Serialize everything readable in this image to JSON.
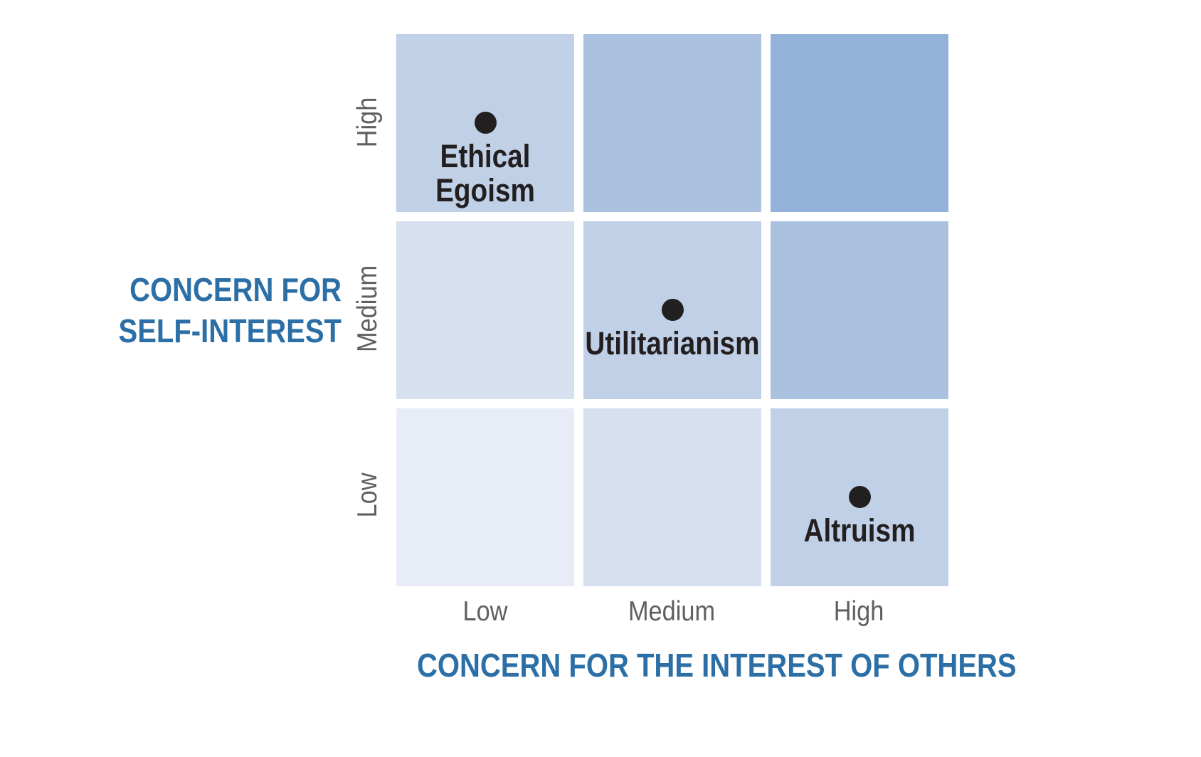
{
  "chart_data": {
    "type": "heatmap",
    "x_title": "CONCERN FOR THE INTEREST OF OTHERS",
    "y_title_lines": [
      "CONCERN FOR",
      "SELF-INTEREST"
    ],
    "x_categories": [
      "Low",
      "Medium",
      "High"
    ],
    "y_categories": [
      "Low",
      "Medium",
      "High"
    ],
    "cells": [
      {
        "x": "Low",
        "y": "High",
        "shade": 2,
        "color": "#c0d0e7"
      },
      {
        "x": "Medium",
        "y": "High",
        "shade": 3,
        "color": "#abc1e0"
      },
      {
        "x": "High",
        "y": "High",
        "shade": 4,
        "color": "#93b2da"
      },
      {
        "x": "Low",
        "y": "Medium",
        "shade": 1,
        "color": "#d6e0ee"
      },
      {
        "x": "Medium",
        "y": "Medium",
        "shade": 2,
        "color": "#c0d0e7"
      },
      {
        "x": "High",
        "y": "Medium",
        "shade": 3,
        "color": "#abc1e0"
      },
      {
        "x": "Low",
        "y": "Low",
        "shade": 0,
        "color": "#e8ecf6"
      },
      {
        "x": "Medium",
        "y": "Low",
        "shade": 1,
        "color": "#d6e0ee"
      },
      {
        "x": "High",
        "y": "Low",
        "shade": 2,
        "color": "#c0d0e7"
      }
    ],
    "points": [
      {
        "x": "Low",
        "y": "High",
        "label_lines": [
          "Ethical",
          "Egoism"
        ]
      },
      {
        "x": "Medium",
        "y": "Medium",
        "label_lines": [
          "Utilitarianism"
        ]
      },
      {
        "x": "High",
        "y": "Low",
        "label_lines": [
          "Altruism"
        ]
      }
    ],
    "colors": {
      "axis_title": "#2b6fa6",
      "tick_label": "#5f5f5f",
      "point": "#221f20",
      "point_label": "#231f20"
    }
  }
}
